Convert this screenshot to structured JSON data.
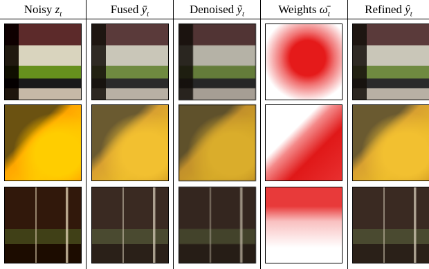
{
  "columns": [
    {
      "label": "Noisy",
      "symbol": "z",
      "subscript": "t"
    },
    {
      "label": "Fused",
      "symbol": "ȳ",
      "subscript": "t"
    },
    {
      "label": "Denoised",
      "symbol": "ỹ",
      "subscript": "t"
    },
    {
      "label": "Weights",
      "symbol": "ω̄",
      "subscript": "t"
    },
    {
      "label": "Refined",
      "symbol": "ŷ",
      "subscript": "t"
    }
  ]
}
